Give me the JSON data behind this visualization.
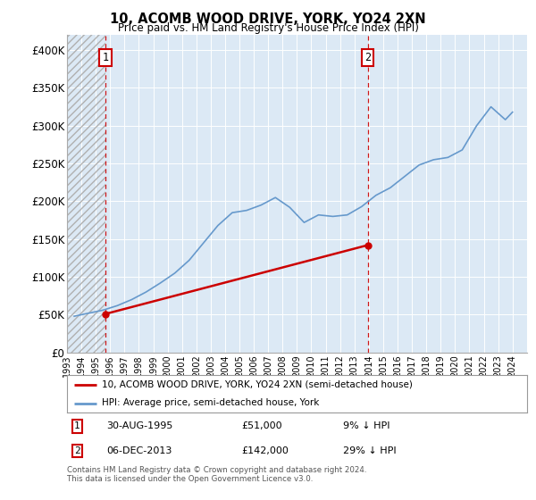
{
  "title": "10, ACOMB WOOD DRIVE, YORK, YO24 2XN",
  "subtitle": "Price paid vs. HM Land Registry's House Price Index (HPI)",
  "legend_line1": "10, ACOMB WOOD DRIVE, YORK, YO24 2XN (semi-detached house)",
  "legend_line2": "HPI: Average price, semi-detached house, York",
  "footnote": "Contains HM Land Registry data © Crown copyright and database right 2024.\nThis data is licensed under the Open Government Licence v3.0.",
  "sale1_date": "30-AUG-1995",
  "sale1_price": 51000,
  "sale1_label": "1",
  "sale1_note": "9% ↓ HPI",
  "sale2_date": "06-DEC-2013",
  "sale2_price": 142000,
  "sale2_label": "2",
  "sale2_note": "29% ↓ HPI",
  "bg_color": "#dce9f5",
  "red_line_color": "#cc0000",
  "blue_line_color": "#6699cc",
  "hpi_years": [
    1993.5,
    1994.5,
    1995.5,
    1996.5,
    1997.5,
    1998.5,
    1999.5,
    2000.5,
    2001.5,
    2002.5,
    2003.5,
    2004.5,
    2005.5,
    2006.5,
    2007.5,
    2008.5,
    2009.5,
    2010.5,
    2011.5,
    2012.5,
    2013.5,
    2014.5,
    2015.5,
    2016.5,
    2017.5,
    2018.5,
    2019.5,
    2020.5,
    2021.5,
    2022.5,
    2023.5,
    2024.0
  ],
  "hpi_values": [
    48000,
    52000,
    56000,
    62000,
    70000,
    80000,
    92000,
    105000,
    122000,
    145000,
    168000,
    185000,
    188000,
    195000,
    205000,
    192000,
    172000,
    182000,
    180000,
    182000,
    193000,
    208000,
    218000,
    233000,
    248000,
    255000,
    258000,
    268000,
    300000,
    325000,
    308000,
    318000
  ],
  "prop_years": [
    1995.67,
    2013.92
  ],
  "prop_prices": [
    51000,
    142000
  ],
  "xmin": 1993,
  "xmax": 2025,
  "ymin": 0,
  "ymax": 420000,
  "sale1_x": 1995.67,
  "sale2_x": 2013.92,
  "yticks": [
    0,
    50000,
    100000,
    150000,
    200000,
    250000,
    300000,
    350000,
    400000
  ],
  "ytick_labels": [
    "£0",
    "£50K",
    "£100K",
    "£150K",
    "£200K",
    "£250K",
    "£300K",
    "£350K",
    "£400K"
  ]
}
